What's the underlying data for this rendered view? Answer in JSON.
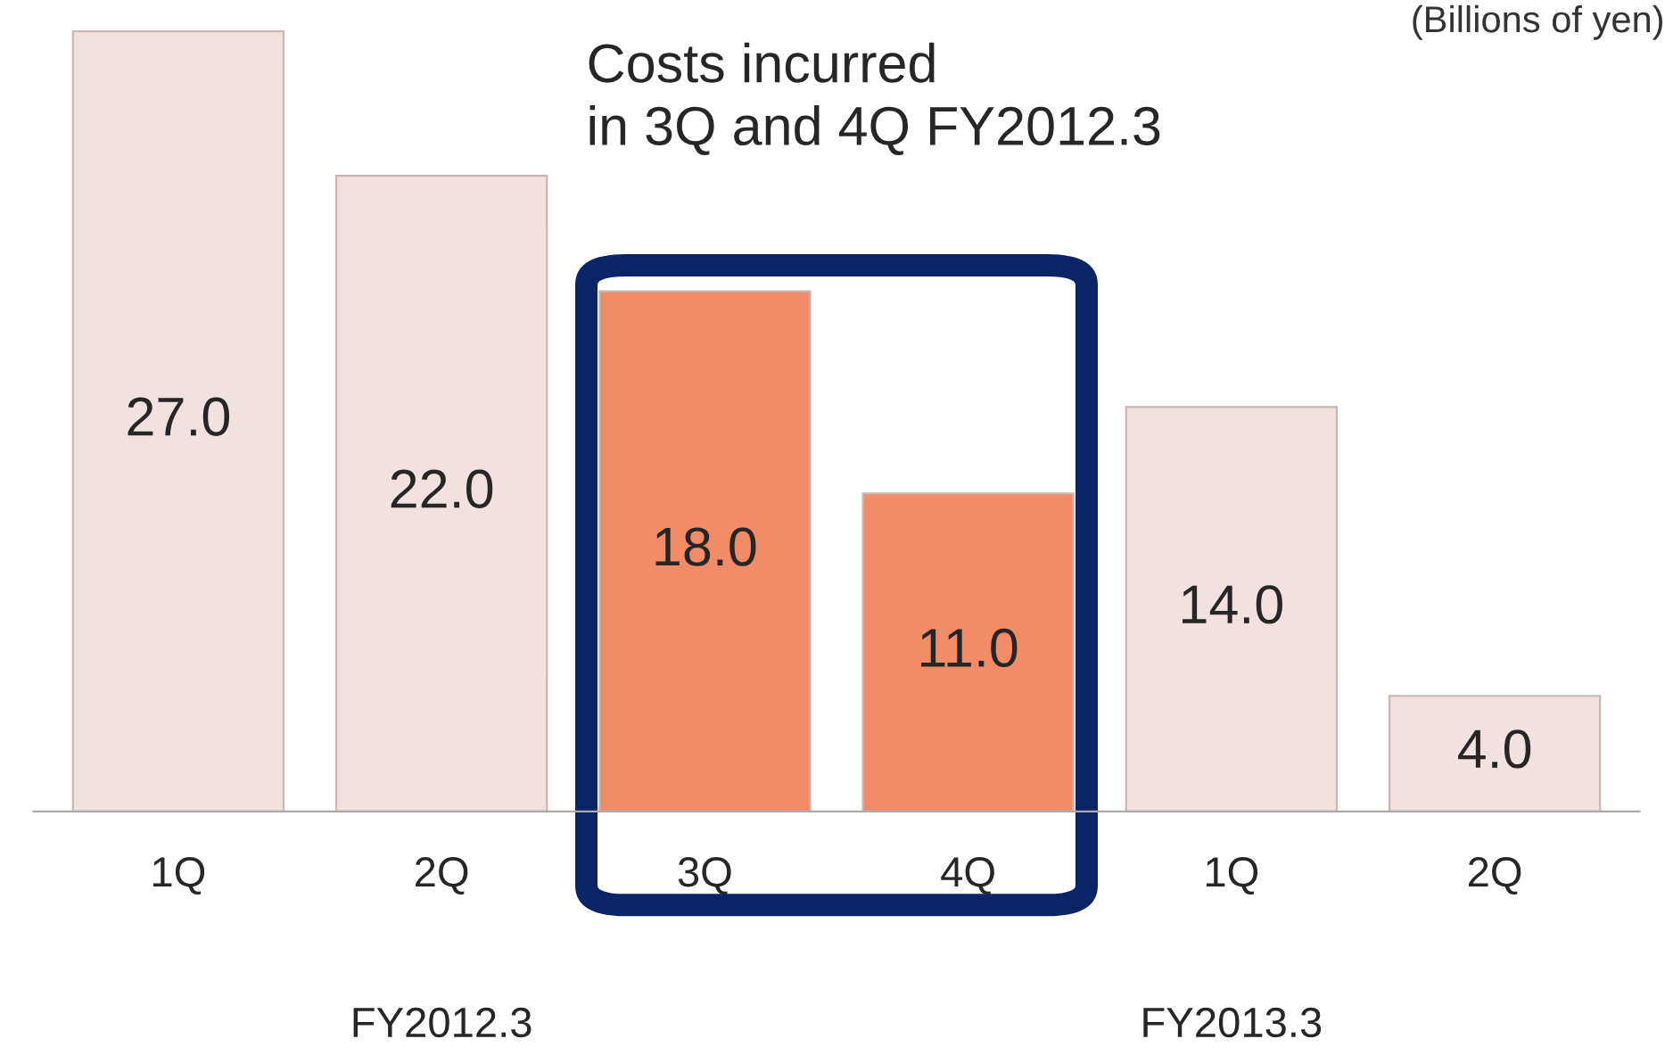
{
  "chart_data": {
    "type": "bar",
    "categories": [
      "1Q",
      "2Q",
      "3Q",
      "4Q",
      "1Q",
      "2Q"
    ],
    "values": [
      27.0,
      22.0,
      18.0,
      11.0,
      14.0,
      4.0
    ],
    "value_labels": [
      "27.0",
      "22.0",
      "18.0",
      "11.0",
      "14.0",
      "4.0"
    ],
    "colors": [
      "#f2e2df",
      "#f2e2df",
      "#f28b68",
      "#f28b68",
      "#f2e2df",
      "#f2e2df"
    ],
    "annotations": [
      "(Billions of yen)",
      "Costs incurred\nin 3Q and 4Q FY2012.3",
      "FY2012.3",
      "FY2013.3"
    ],
    "grid": false,
    "legend": false
  }
}
